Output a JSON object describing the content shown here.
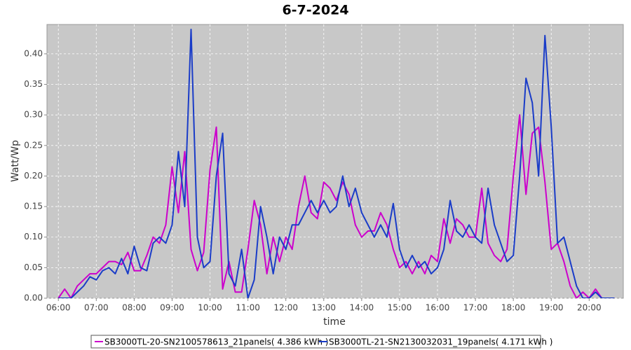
{
  "chart_data": {
    "type": "line",
    "title": "6-7-2024",
    "x_label": "time",
    "y_label": "Watt/Wp",
    "x": [
      "06:00",
      "06:10",
      "06:20",
      "06:30",
      "06:40",
      "06:50",
      "07:00",
      "07:10",
      "07:20",
      "07:30",
      "07:40",
      "07:50",
      "08:00",
      "08:10",
      "08:20",
      "08:30",
      "08:40",
      "08:50",
      "09:00",
      "09:10",
      "09:20",
      "09:30",
      "09:40",
      "09:50",
      "10:00",
      "10:10",
      "10:20",
      "10:30",
      "10:40",
      "10:50",
      "11:00",
      "11:10",
      "11:20",
      "11:30",
      "11:40",
      "11:50",
      "12:00",
      "12:10",
      "12:20",
      "12:30",
      "12:40",
      "12:50",
      "13:00",
      "13:10",
      "13:20",
      "13:30",
      "13:40",
      "13:50",
      "14:00",
      "14:10",
      "14:20",
      "14:30",
      "14:40",
      "14:50",
      "15:00",
      "15:10",
      "15:20",
      "15:30",
      "15:40",
      "15:50",
      "16:00",
      "16:10",
      "16:20",
      "16:30",
      "16:40",
      "16:50",
      "17:00",
      "17:10",
      "17:20",
      "17:30",
      "17:40",
      "17:50",
      "18:00",
      "18:10",
      "18:20",
      "18:30",
      "18:40",
      "18:50",
      "19:00",
      "19:10",
      "19:20",
      "19:30",
      "19:40",
      "19:50",
      "20:00",
      "20:10",
      "20:20",
      "20:30",
      "20:40"
    ],
    "series": [
      {
        "name": "SB3000TL-20-SN2100578613_21panels( 4.386 kWh )",
        "color": "#cc00cc",
        "values": [
          0,
          0.015,
          0,
          0.02,
          0.03,
          0.04,
          0.04,
          0.05,
          0.06,
          0.06,
          0.055,
          0.075,
          0.045,
          0.045,
          0.07,
          0.1,
          0.09,
          0.12,
          0.215,
          0.14,
          0.24,
          0.08,
          0.045,
          0.075,
          0.21,
          0.28,
          0.015,
          0.06,
          0.01,
          0.01,
          0.08,
          0.16,
          0.12,
          0.04,
          0.1,
          0.06,
          0.1,
          0.08,
          0.15,
          0.2,
          0.14,
          0.13,
          0.19,
          0.18,
          0.16,
          0.19,
          0.17,
          0.12,
          0.1,
          0.11,
          0.11,
          0.14,
          0.12,
          0.08,
          0.05,
          0.06,
          0.04,
          0.06,
          0.04,
          0.07,
          0.06,
          0.13,
          0.09,
          0.13,
          0.12,
          0.1,
          0.1,
          0.18,
          0.09,
          0.07,
          0.06,
          0.08,
          0.2,
          0.3,
          0.17,
          0.27,
          0.28,
          0.19,
          0.08,
          0.09,
          0.06,
          0.02,
          0,
          0.01,
          0,
          0.015,
          0,
          0,
          0
        ]
      },
      {
        "name": "SB3000TL-21-SN2130032031_19panels( 4.171 kWh )",
        "color": "#1a3cc8",
        "values": [
          0,
          0,
          0,
          0.01,
          0.02,
          0.035,
          0.03,
          0.045,
          0.05,
          0.04,
          0.065,
          0.04,
          0.085,
          0.05,
          0.045,
          0.09,
          0.1,
          0.09,
          0.12,
          0.24,
          0.15,
          0.44,
          0.1,
          0.05,
          0.06,
          0.2,
          0.27,
          0.04,
          0.02,
          0.08,
          0,
          0.03,
          0.15,
          0.1,
          0.04,
          0.1,
          0.08,
          0.12,
          0.12,
          0.14,
          0.16,
          0.14,
          0.16,
          0.14,
          0.15,
          0.2,
          0.15,
          0.18,
          0.14,
          0.12,
          0.1,
          0.12,
          0.1,
          0.155,
          0.08,
          0.05,
          0.07,
          0.05,
          0.06,
          0.04,
          0.05,
          0.08,
          0.16,
          0.11,
          0.1,
          0.12,
          0.1,
          0.09,
          0.18,
          0.12,
          0.09,
          0.06,
          0.07,
          0.2,
          0.36,
          0.32,
          0.2,
          0.43,
          0.28,
          0.09,
          0.1,
          0.06,
          0.02,
          0,
          0,
          0.01,
          0,
          0,
          0
        ]
      }
    ],
    "xlim": [
      "05:42",
      "20:54"
    ],
    "xticks": [
      "06:00",
      "07:00",
      "08:00",
      "09:00",
      "10:00",
      "11:00",
      "12:00",
      "13:00",
      "14:00",
      "15:00",
      "16:00",
      "17:00",
      "18:00",
      "19:00",
      "20:00"
    ],
    "ylim": [
      0,
      0.448
    ],
    "yticks": [
      {
        "value": 0,
        "label": "0.00"
      },
      0.05,
      {
        "value": 0.1,
        "label": "0.10"
      },
      0.15,
      {
        "value": 0.2,
        "label": "0.20"
      },
      0.25,
      {
        "value": 0.3,
        "label": "0.30"
      },
      0.35,
      {
        "value": 0.4,
        "label": "0.40"
      }
    ],
    "grid": true,
    "legend": "bottom"
  }
}
